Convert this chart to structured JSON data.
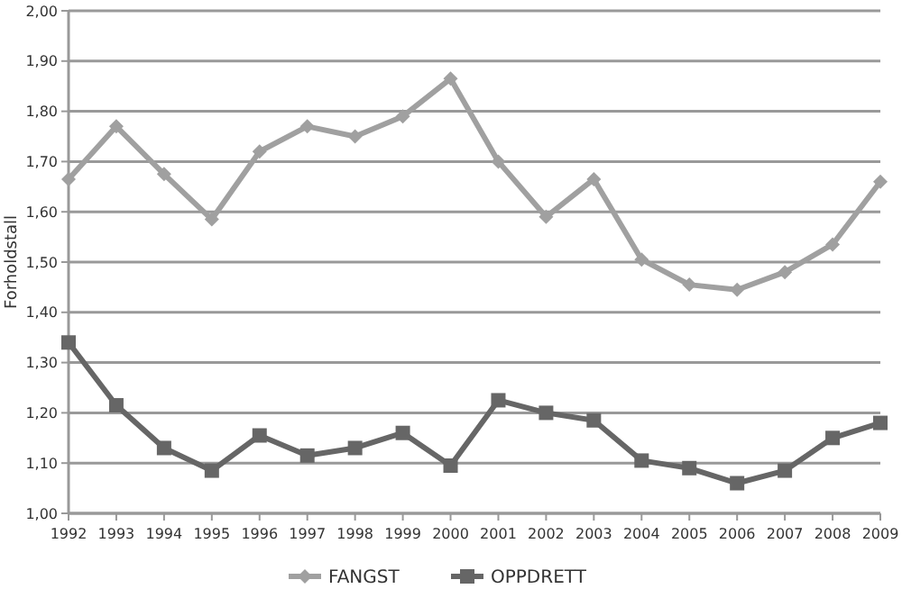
{
  "chart_data": {
    "type": "line",
    "ylabel": "Forholdstall",
    "categories": [
      "1992",
      "1993",
      "1994",
      "1995",
      "1996",
      "1997",
      "1998",
      "1999",
      "2000",
      "2001",
      "2002",
      "2003",
      "2004",
      "2005",
      "2006",
      "2007",
      "2008",
      "2009"
    ],
    "series": [
      {
        "name": "FANGST",
        "color": "#a0a0a0",
        "marker": "diamond",
        "values": [
          1.665,
          1.77,
          1.675,
          1.585,
          1.72,
          1.77,
          1.75,
          1.79,
          1.865,
          1.7,
          1.59,
          1.665,
          1.505,
          1.455,
          1.445,
          1.48,
          1.535,
          1.66
        ]
      },
      {
        "name": "OPPDRETT",
        "color": "#666666",
        "marker": "square",
        "values": [
          1.34,
          1.215,
          1.13,
          1.085,
          1.155,
          1.115,
          1.13,
          1.16,
          1.095,
          1.225,
          1.2,
          1.185,
          1.105,
          1.09,
          1.06,
          1.085,
          1.15,
          1.18
        ]
      }
    ],
    "ylim": [
      1,
      2
    ],
    "yticks": [
      {
        "value": 1,
        "label": "1,00"
      },
      {
        "value": 1.1,
        "label": "1,10"
      },
      {
        "value": 1.2,
        "label": "1,20"
      },
      {
        "value": 1.3,
        "label": "1,30"
      },
      {
        "value": 1.4,
        "label": "1,40"
      },
      {
        "value": 1.5,
        "label": "1,50"
      },
      {
        "value": 1.6,
        "label": "1,60"
      },
      {
        "value": 1.7,
        "label": "1,70"
      },
      {
        "value": 1.8,
        "label": "1,80"
      },
      {
        "value": 1.9,
        "label": "1,90"
      },
      {
        "value": 2,
        "label": "2,00"
      }
    ],
    "grid": "y",
    "legend": "bottom"
  }
}
